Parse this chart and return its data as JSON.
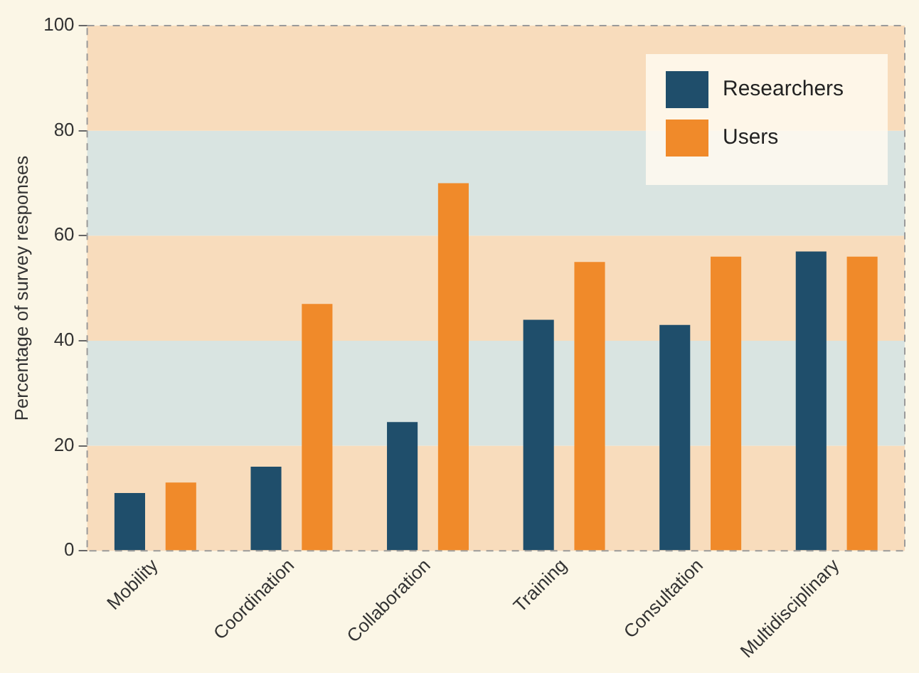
{
  "chart_data": {
    "type": "bar",
    "ylabel": "Percentage of survey responses",
    "categories": [
      "Mobility",
      "Coordination",
      "Collaboration",
      "Training",
      "Consultation",
      "Multidisciplinary"
    ],
    "series": [
      {
        "name": "Researchers",
        "color": "#1f4e6b",
        "values": [
          11,
          16,
          24.5,
          44,
          43,
          57
        ]
      },
      {
        "name": "Users",
        "color": "#f08a2a",
        "values": [
          13,
          47,
          70,
          55,
          56,
          56
        ]
      }
    ],
    "ylim": [
      0,
      100
    ],
    "yticks": [
      0,
      20,
      40,
      60,
      80,
      100
    ],
    "grid": false,
    "legend": "top right",
    "bands": [
      {
        "axis": "y",
        "from": 0,
        "to": 20,
        "color": "#f8dcbc"
      },
      {
        "axis": "y",
        "from": 20,
        "to": 40,
        "color": "#d9e4e1"
      },
      {
        "axis": "y",
        "from": 40,
        "to": 60,
        "color": "#f8dcbc"
      },
      {
        "axis": "y",
        "from": 60,
        "to": 80,
        "color": "#d9e4e1"
      },
      {
        "axis": "y",
        "from": 80,
        "to": 100,
        "color": "#f8dcbc"
      }
    ]
  }
}
